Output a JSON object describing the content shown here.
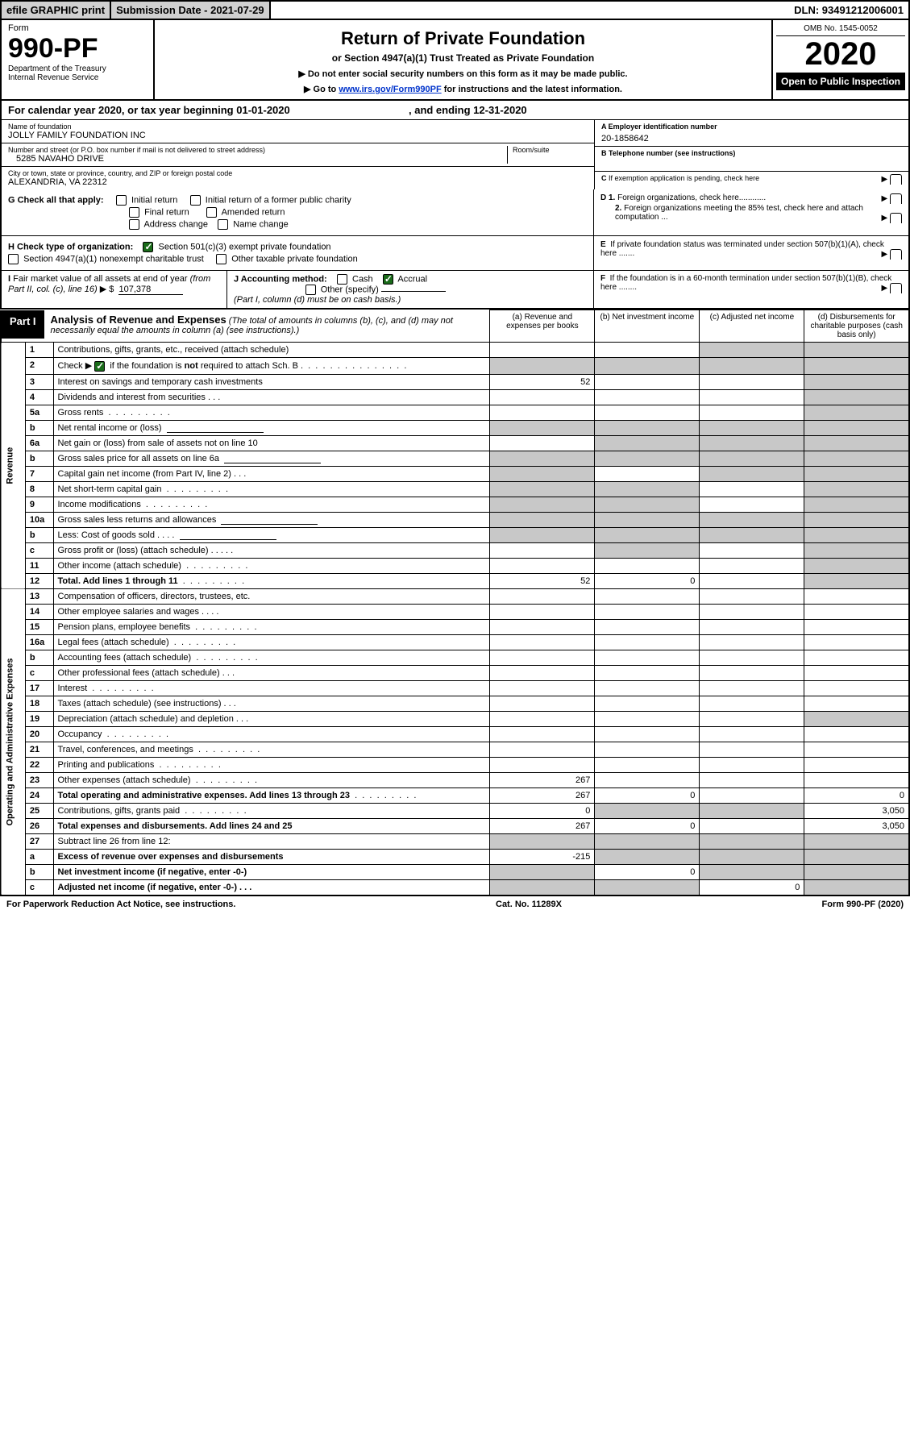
{
  "topbar": {
    "efile": "efile GRAPHIC print",
    "subdate_label": "Submission Date - 2021-07-29",
    "dln": "DLN: 93491212006001"
  },
  "header": {
    "form_word": "Form",
    "form_no": "990-PF",
    "dept": "Department of the Treasury",
    "irs": "Internal Revenue Service",
    "title": "Return of Private Foundation",
    "subtitle": "or Section 4947(a)(1) Trust Treated as Private Foundation",
    "note1": "▶ Do not enter social security numbers on this form as it may be made public.",
    "note2_pre": "▶ Go to ",
    "note2_link": "www.irs.gov/Form990PF",
    "note2_post": " for instructions and the latest information.",
    "omb": "OMB No. 1545-0052",
    "year": "2020",
    "open": "Open to Public Inspection"
  },
  "calyear": {
    "text_pre": "For calendar year 2020, or tax year beginning ",
    "begin": "01-01-2020",
    "mid": " , and ending ",
    "end": "12-31-2020"
  },
  "ident": {
    "name_lbl": "Name of foundation",
    "name": "JOLLY FAMILY FOUNDATION INC",
    "addr_lbl": "Number and street (or P.O. box number if mail is not delivered to street address)",
    "addr": "5285 NAVAHO DRIVE",
    "room_lbl": "Room/suite",
    "city_lbl": "City or town, state or province, country, and ZIP or foreign postal code",
    "city": "ALEXANDRIA, VA  22312",
    "a_lbl": "A Employer identification number",
    "a_val": "20-1858642",
    "b_lbl": "B Telephone number (see instructions)",
    "c_lbl": "C If exemption application is pending, check here",
    "d1": "D 1. Foreign organizations, check here............",
    "d2": "2. Foreign organizations meeting the 85% test, check here and attach computation ...",
    "e_lbl": "E  If private foundation status was terminated under section 507(b)(1)(A), check here .......",
    "f_lbl": "F  If the foundation is in a 60-month termination under section 507(b)(1)(B), check here ........"
  },
  "G": {
    "label": "G Check all that apply:",
    "opts": [
      "Initial return",
      "Initial return of a former public charity",
      "Final return",
      "Amended return",
      "Address change",
      "Name change"
    ]
  },
  "H": {
    "label": "H Check type of organization:",
    "opt1": "Section 501(c)(3) exempt private foundation",
    "opt2": "Section 4947(a)(1) nonexempt charitable trust",
    "opt3": "Other taxable private foundation"
  },
  "I": {
    "label": "I Fair market value of all assets at end of year (from Part II, col. (c), line 16)",
    "val": "107,378"
  },
  "J": {
    "label": "J Accounting method:",
    "cash": "Cash",
    "accrual": "Accrual",
    "other": "Other (specify)",
    "note": "(Part I, column (d) must be on cash basis.)"
  },
  "part1": {
    "lbl": "Part I",
    "title": "Analysis of Revenue and Expenses",
    "note": "(The total of amounts in columns (b), (c), and (d) may not necessarily equal the amounts in column (a) (see instructions).)",
    "col_a": "(a)   Revenue and expenses per books",
    "col_b": "(b)  Net investment income",
    "col_c": "(c)  Adjusted net income",
    "col_d": "(d)  Disbursements for charitable purposes (cash basis only)"
  },
  "sections": {
    "rev": "Revenue",
    "exp": "Operating and Administrative Expenses"
  },
  "rows": [
    {
      "n": "1",
      "d": "Contributions, gifts, grants, etc., received (attach schedule)",
      "sh": [
        0,
        0,
        1,
        1
      ]
    },
    {
      "n": "2",
      "d": "Check ▶ ☑ if the foundation is not required to attach Sch. B",
      "dots": true,
      "sh": [
        1,
        1,
        1,
        1
      ],
      "cb": true
    },
    {
      "n": "3",
      "d": "Interest on savings and temporary cash investments",
      "a": "52",
      "sh": [
        0,
        0,
        0,
        1
      ]
    },
    {
      "n": "4",
      "d": "Dividends and interest from securities    .   .   .",
      "sh": [
        0,
        0,
        0,
        1
      ]
    },
    {
      "n": "5a",
      "d": "Gross rents",
      "dots": true,
      "sh": [
        0,
        0,
        0,
        1
      ]
    },
    {
      "n": "b",
      "d": "Net rental income or (loss)",
      "il": true,
      "sh": [
        1,
        1,
        1,
        1
      ]
    },
    {
      "n": "6a",
      "d": "Net gain or (loss) from sale of assets not on line 10",
      "sh": [
        0,
        1,
        1,
        1
      ]
    },
    {
      "n": "b",
      "d": "Gross sales price for all assets on line 6a",
      "il": true,
      "sh": [
        1,
        1,
        1,
        1
      ]
    },
    {
      "n": "7",
      "d": "Capital gain net income (from Part IV, line 2)    .   .   .",
      "sh": [
        1,
        0,
        1,
        1
      ]
    },
    {
      "n": "8",
      "d": "Net short-term capital gain",
      "dots": true,
      "sh": [
        1,
        1,
        0,
        1
      ]
    },
    {
      "n": "9",
      "d": "Income modifications",
      "dots": true,
      "sh": [
        1,
        1,
        0,
        1
      ]
    },
    {
      "n": "10a",
      "d": "Gross sales less returns and allowances",
      "il": true,
      "sh": [
        1,
        1,
        1,
        1
      ]
    },
    {
      "n": "b",
      "d": "Less: Cost of goods sold     .   .   .   .",
      "il": true,
      "sh": [
        1,
        1,
        1,
        1
      ]
    },
    {
      "n": "c",
      "d": "Gross profit or (loss) (attach schedule)    .   .   .   .   .",
      "sh": [
        0,
        1,
        0,
        1
      ]
    },
    {
      "n": "11",
      "d": "Other income (attach schedule)",
      "dots": true,
      "sh": [
        0,
        0,
        0,
        1
      ]
    },
    {
      "n": "12",
      "d": "Total. Add lines 1 through 11",
      "dots": true,
      "bold": true,
      "a": "52",
      "b": "0",
      "sh": [
        0,
        0,
        0,
        1
      ]
    }
  ],
  "exp_rows": [
    {
      "n": "13",
      "d": "Compensation of officers, directors, trustees, etc.",
      "sh": [
        0,
        0,
        0,
        0
      ]
    },
    {
      "n": "14",
      "d": "Other employee salaries and wages    .   .   .   .",
      "sh": [
        0,
        0,
        0,
        0
      ]
    },
    {
      "n": "15",
      "d": "Pension plans, employee benefits",
      "dots": true,
      "sh": [
        0,
        0,
        0,
        0
      ]
    },
    {
      "n": "16a",
      "d": "Legal fees (attach schedule)",
      "dots": true,
      "sh": [
        0,
        0,
        0,
        0
      ]
    },
    {
      "n": "b",
      "d": "Accounting fees (attach schedule)",
      "dots": true,
      "sh": [
        0,
        0,
        0,
        0
      ]
    },
    {
      "n": "c",
      "d": "Other professional fees (attach schedule)    .   .   .",
      "sh": [
        0,
        0,
        0,
        0
      ]
    },
    {
      "n": "17",
      "d": "Interest",
      "dots": true,
      "sh": [
        0,
        0,
        0,
        0
      ]
    },
    {
      "n": "18",
      "d": "Taxes (attach schedule) (see instructions)    .   .   .",
      "sh": [
        0,
        0,
        0,
        0
      ]
    },
    {
      "n": "19",
      "d": "Depreciation (attach schedule) and depletion    .   .   .",
      "sh": [
        0,
        0,
        0,
        1
      ]
    },
    {
      "n": "20",
      "d": "Occupancy",
      "dots": true,
      "sh": [
        0,
        0,
        0,
        0
      ]
    },
    {
      "n": "21",
      "d": "Travel, conferences, and meetings",
      "dots": true,
      "sh": [
        0,
        0,
        0,
        0
      ]
    },
    {
      "n": "22",
      "d": "Printing and publications",
      "dots": true,
      "sh": [
        0,
        0,
        0,
        0
      ]
    },
    {
      "n": "23",
      "d": "Other expenses (attach schedule)",
      "dots": true,
      "a": "267",
      "sh": [
        0,
        0,
        0,
        0
      ]
    },
    {
      "n": "24",
      "d": "Total operating and administrative expenses. Add lines 13 through 23",
      "dots": true,
      "bold": true,
      "a": "267",
      "b": "0",
      "d4": "0",
      "sh": [
        0,
        0,
        0,
        0
      ]
    },
    {
      "n": "25",
      "d": "Contributions, gifts, grants paid",
      "dots": true,
      "a": "0",
      "d4": "3,050",
      "sh": [
        0,
        1,
        1,
        0
      ]
    },
    {
      "n": "26",
      "d": "Total expenses and disbursements. Add lines 24 and 25",
      "bold": true,
      "a": "267",
      "b": "0",
      "d4": "3,050",
      "sh": [
        0,
        0,
        0,
        0
      ]
    }
  ],
  "final_rows": [
    {
      "n": "27",
      "d": "Subtract line 26 from line 12:",
      "sh": [
        1,
        1,
        1,
        1
      ]
    },
    {
      "n": "a",
      "d": "Excess of revenue over expenses and disbursements",
      "bold": true,
      "a": "-215",
      "sh": [
        0,
        1,
        1,
        1
      ]
    },
    {
      "n": "b",
      "d": "Net investment income (if negative, enter -0-)",
      "bold": true,
      "b": "0",
      "sh": [
        1,
        0,
        1,
        1
      ]
    },
    {
      "n": "c",
      "d": "Adjusted net income (if negative, enter -0-)    .   .   .",
      "bold": true,
      "c": "0",
      "sh": [
        1,
        1,
        0,
        1
      ]
    }
  ],
  "footer": {
    "left": "For Paperwork Reduction Act Notice, see instructions.",
    "mid": "Cat. No. 11289X",
    "right": "Form 990-PF (2020)"
  },
  "style": {
    "shaded_bg": "#c8c8c8",
    "check_green": "#1a6b1a",
    "link": "#0033cc"
  }
}
